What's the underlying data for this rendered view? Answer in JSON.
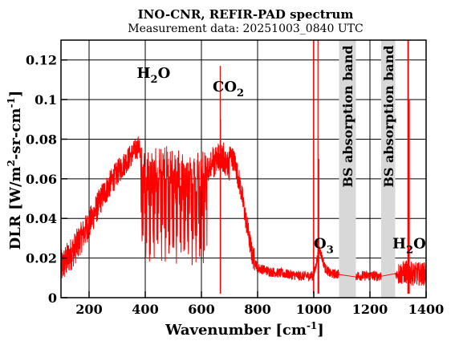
{
  "chart_data": {
    "type": "line",
    "title": "INO-CNR, REFIR-PAD spectrum",
    "subtitle": "Measurement data: 20251003_0840 UTC",
    "xlabel": {
      "main": "Wavenumber [cm",
      "sup": "-1",
      "close": "]"
    },
    "ylabel": {
      "p1": "DLR [W/m",
      "sup1": "2",
      "p2": "-sr-cm",
      "sup2": "-1",
      "p3": "]"
    },
    "xlim": [
      100,
      1400
    ],
    "ylim": [
      0,
      0.13
    ],
    "xticks": [
      "200",
      "400",
      "600",
      "800",
      "1000",
      "1200",
      "1400"
    ],
    "yticks": [
      "0",
      "0.02",
      "0.04",
      "0.06",
      "0.08",
      "0.1",
      "0.12"
    ],
    "grid": true,
    "line_color": "#ff0000",
    "band_color": "#d8d8d8",
    "bands": [
      {
        "x_start": 1090,
        "x_end": 1150,
        "label": "BS absorption band"
      },
      {
        "x_start": 1240,
        "x_end": 1290,
        "label": "BS absorption band"
      }
    ],
    "annotations": [
      {
        "label": "H",
        "sub": "2",
        "tail": "O",
        "x": 370,
        "y": 0.111
      },
      {
        "label": "CO",
        "sub": "2",
        "tail": "",
        "x": 640,
        "y": 0.104
      },
      {
        "label": "O",
        "sub": "3",
        "tail": "",
        "x": 1000,
        "y": 0.025
      },
      {
        "label": "H",
        "sub": "2",
        "tail": "O",
        "x": 1280,
        "y": 0.025
      }
    ],
    "series": [
      {
        "x": [
          100,
          150,
          200,
          250,
          300,
          350,
          380,
          400,
          450,
          500,
          550,
          600,
          620,
          650,
          680,
          700,
          720,
          740,
          760,
          780,
          800,
          850,
          900,
          950,
          1000,
          1020,
          1040,
          1060,
          1080,
          1160,
          1200,
          1230,
          1300,
          1330,
          1350,
          1380,
          1400
        ],
        "y": [
          0.015,
          0.025,
          0.037,
          0.052,
          0.063,
          0.072,
          0.077,
          0.07,
          0.072,
          0.071,
          0.07,
          0.069,
          0.072,
          0.077,
          0.076,
          0.073,
          0.068,
          0.055,
          0.038,
          0.022,
          0.015,
          0.013,
          0.012,
          0.011,
          0.011,
          0.025,
          0.015,
          0.012,
          0.012,
          0.011,
          0.011,
          0.011,
          0.012,
          0.013,
          0.012,
          0.012,
          0.012
        ]
      }
    ]
  }
}
